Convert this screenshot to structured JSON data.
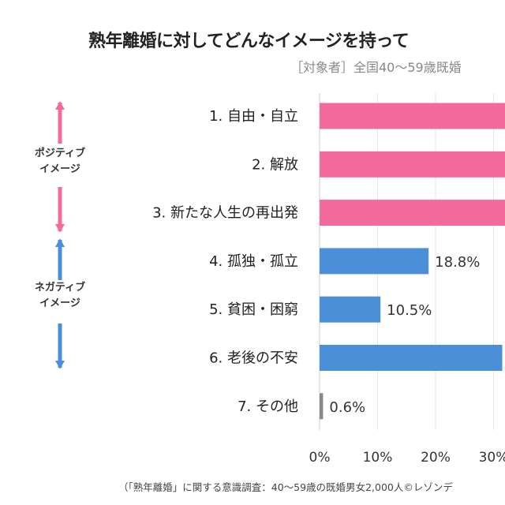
{
  "chart_data": {
    "type": "bar",
    "orientation": "horizontal",
    "title": "熟年離婚に対してどんなイメージを持って",
    "subtitle": "［対象者］全国40〜59歳既婚",
    "categories": [
      "1. 自由・自立",
      "2. 解放",
      "3. 新たな人生の再出発",
      "4. 孤独・孤立",
      "5. 貧困・困窮",
      "6. 老後の不安",
      "7. その他"
    ],
    "values": [
      null,
      null,
      null,
      18.8,
      10.5,
      31.5,
      0.6
    ],
    "value_labels": [
      null,
      null,
      null,
      "18.8%",
      "10.5%",
      null,
      "0.6%"
    ],
    "note": "",
    "bar_colors": [
      "#f26b9c",
      "#f26b9c",
      "#f26b9c",
      "#4a8fd8",
      "#4a8fd8",
      "#4a8fd8",
      "#888888"
    ],
    "x_ticks": [
      "0%",
      "10%",
      "20%",
      "30%"
    ],
    "xlim_visible": [
      0,
      32
    ],
    "grid": true,
    "groups": [
      {
        "label_line1": "ポジティブ",
        "label_line2": "イメージ",
        "color": "#f26b9c"
      },
      {
        "label_line1": "ネガティブ",
        "label_line2": "イメージ",
        "color": "#4a8fd8"
      }
    ]
  },
  "footer": "（「熟年離婚」に関する意識調査：40〜59歳の既婚男女2,000人©レゾンデ"
}
